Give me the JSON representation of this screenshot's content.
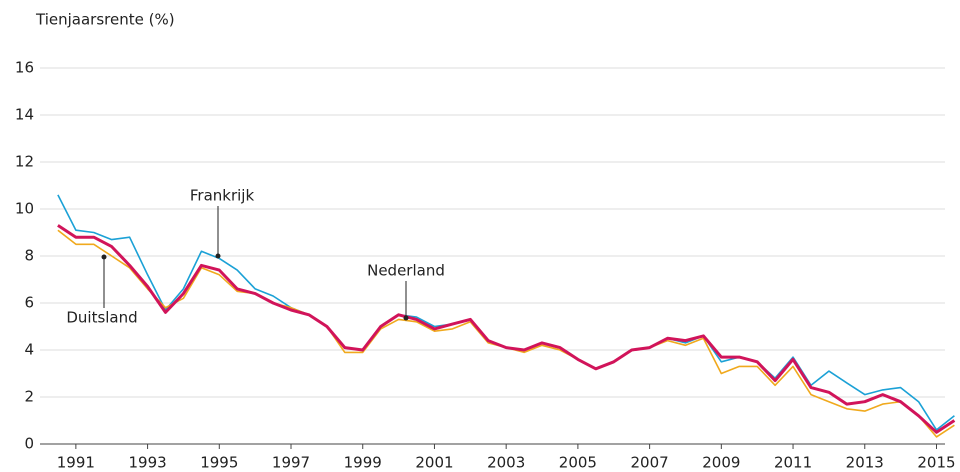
{
  "chart_data": {
    "type": "line",
    "y_label": "Tienjaarsrente (%)",
    "x": [
      1990.5,
      1991,
      1991.5,
      1992,
      1992.5,
      1993,
      1993.5,
      1994,
      1994.5,
      1995,
      1995.5,
      1996,
      1996.5,
      1997,
      1997.5,
      1998,
      1998.5,
      1999,
      1999.5,
      2000,
      2000.5,
      2001,
      2001.5,
      2002,
      2002.5,
      2003,
      2003.5,
      2004,
      2004.5,
      2005,
      2005.5,
      2006,
      2006.5,
      2007,
      2007.5,
      2008,
      2008.5,
      2009,
      2009.5,
      2010,
      2010.5,
      2011,
      2011.5,
      2012,
      2012.5,
      2013,
      2013.5,
      2014,
      2014.5,
      2015,
      2015.5
    ],
    "series": [
      {
        "name": "Frankrijk",
        "color": "#1ba1d6",
        "values": [
          10.6,
          9.1,
          9.0,
          8.7,
          8.8,
          7.2,
          5.7,
          6.6,
          8.2,
          7.9,
          7.4,
          6.6,
          6.3,
          5.8,
          5.5,
          5.0,
          4.1,
          4.0,
          5.0,
          5.5,
          5.4,
          5.0,
          5.1,
          5.3,
          4.4,
          4.1,
          4.0,
          4.3,
          4.1,
          3.6,
          3.2,
          3.5,
          4.0,
          4.1,
          4.5,
          4.3,
          4.6,
          3.5,
          3.7,
          3.5,
          2.8,
          3.7,
          2.5,
          3.1,
          2.6,
          2.1,
          2.3,
          2.4,
          1.8,
          0.6,
          1.2
        ]
      },
      {
        "name": "Duitsland",
        "color": "#f0a91d",
        "values": [
          9.1,
          8.5,
          8.5,
          8.0,
          7.5,
          6.6,
          5.8,
          6.2,
          7.5,
          7.2,
          6.5,
          6.4,
          6.0,
          5.8,
          5.5,
          5.0,
          3.9,
          3.9,
          4.9,
          5.3,
          5.2,
          4.8,
          4.9,
          5.2,
          4.3,
          4.1,
          3.9,
          4.2,
          4.0,
          3.6,
          3.2,
          3.5,
          4.0,
          4.1,
          4.4,
          4.2,
          4.5,
          3.0,
          3.3,
          3.3,
          2.5,
          3.3,
          2.1,
          1.8,
          1.5,
          1.4,
          1.7,
          1.8,
          1.2,
          0.3,
          0.8
        ]
      },
      {
        "name": "Nederland",
        "color": "#d1145a",
        "values": [
          9.3,
          8.8,
          8.8,
          8.4,
          7.6,
          6.7,
          5.6,
          6.4,
          7.6,
          7.4,
          6.6,
          6.4,
          6.0,
          5.7,
          5.5,
          5.0,
          4.1,
          4.0,
          5.0,
          5.5,
          5.3,
          4.9,
          5.1,
          5.3,
          4.4,
          4.1,
          4.0,
          4.3,
          4.1,
          3.6,
          3.2,
          3.5,
          4.0,
          4.1,
          4.5,
          4.4,
          4.6,
          3.7,
          3.7,
          3.5,
          2.7,
          3.6,
          2.4,
          2.2,
          1.7,
          1.8,
          2.1,
          1.8,
          1.2,
          0.5,
          1.0
        ]
      }
    ],
    "xlim": [
      1990,
      2015.6
    ],
    "xticks": [
      1991,
      1993,
      1995,
      1997,
      1999,
      2001,
      2003,
      2005,
      2007,
      2009,
      2011,
      2013,
      2015
    ],
    "ylim": [
      0,
      16
    ],
    "yticks": [
      0,
      2,
      4,
      6,
      8,
      10,
      12,
      14,
      16
    ],
    "grid": true
  }
}
